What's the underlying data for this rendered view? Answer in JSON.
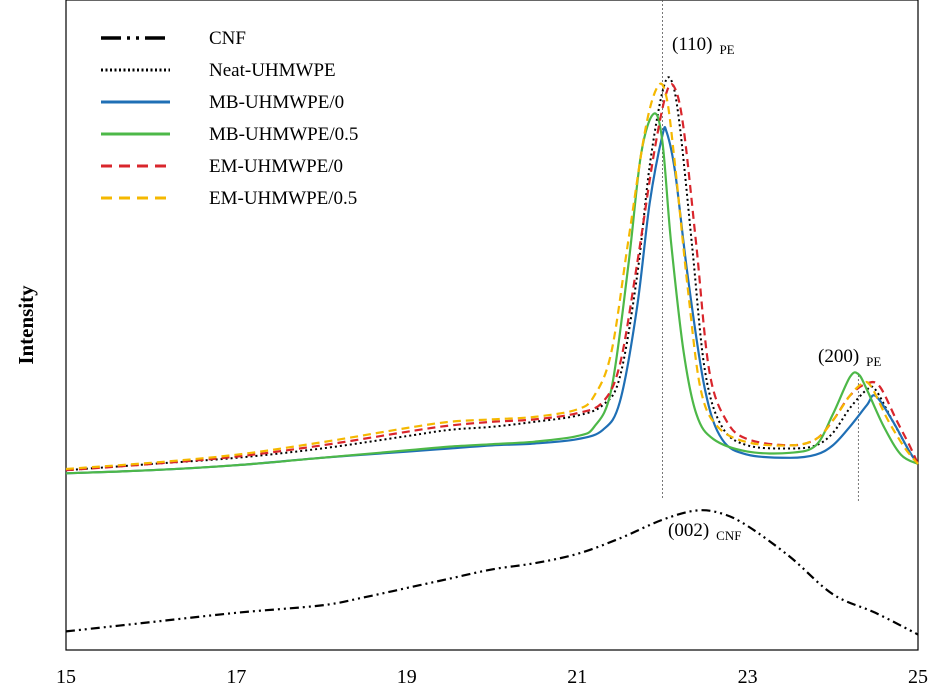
{
  "chart_data": {
    "type": "line",
    "title": "",
    "xlabel": "",
    "ylabel": "Intensity",
    "xlim": [
      15,
      25
    ],
    "ylim": [
      0,
      1
    ],
    "xticks": [
      15,
      17,
      19,
      21,
      23,
      25
    ],
    "grid": false,
    "legend_position": "top-left",
    "series": [
      {
        "name": "CNF",
        "color": "#000000",
        "dash": "dash-dot-dot",
        "x": [
          15,
          16,
          17,
          18,
          18.5,
          19,
          19.5,
          20,
          20.5,
          21,
          21.5,
          22,
          22.4,
          22.7,
          23,
          23.5,
          24,
          24.5,
          25
        ],
        "y": [
          0.03,
          0.045,
          0.06,
          0.072,
          0.085,
          0.1,
          0.115,
          0.13,
          0.14,
          0.155,
          0.18,
          0.21,
          0.225,
          0.22,
          0.2,
          0.15,
          0.09,
          0.06,
          0.025
        ]
      },
      {
        "name": "Neat-UHMWPE",
        "color": "#000000",
        "dash": "dotted",
        "x": [
          15,
          16,
          17,
          18,
          19,
          19.5,
          20,
          20.5,
          21,
          21.3,
          21.5,
          21.7,
          21.85,
          22,
          22.1,
          22.2,
          22.35,
          22.5,
          22.7,
          23,
          23.5,
          23.8,
          24,
          24.2,
          24.4,
          24.5,
          24.7,
          24.9,
          25
        ],
        "y": [
          0.29,
          0.3,
          0.31,
          0.325,
          0.345,
          0.355,
          0.36,
          0.368,
          0.378,
          0.395,
          0.44,
          0.6,
          0.78,
          0.9,
          0.92,
          0.85,
          0.65,
          0.45,
          0.36,
          0.33,
          0.325,
          0.33,
          0.35,
          0.39,
          0.42,
          0.42,
          0.37,
          0.32,
          0.3
        ]
      },
      {
        "name": "MB-UHMWPE/0",
        "color": "#1f6fb5",
        "dash": "solid",
        "x": [
          15,
          16,
          17,
          18,
          19,
          19.5,
          20,
          20.5,
          21,
          21.3,
          21.5,
          21.7,
          21.85,
          22,
          22.05,
          22.15,
          22.3,
          22.5,
          22.7,
          23,
          23.5,
          23.8,
          24,
          24.2,
          24.4,
          24.5,
          24.7,
          24.9,
          25
        ],
        "y": [
          0.285,
          0.29,
          0.298,
          0.31,
          0.32,
          0.325,
          0.33,
          0.333,
          0.34,
          0.355,
          0.4,
          0.55,
          0.72,
          0.83,
          0.835,
          0.77,
          0.6,
          0.42,
          0.34,
          0.315,
          0.31,
          0.315,
          0.33,
          0.36,
          0.395,
          0.41,
          0.37,
          0.32,
          0.3
        ]
      },
      {
        "name": "MB-UHMWPE/0.5",
        "color": "#4db848",
        "dash": "solid",
        "x": [
          15,
          16,
          17,
          18,
          19,
          19.5,
          20,
          20.5,
          21,
          21.2,
          21.4,
          21.6,
          21.75,
          21.9,
          22,
          22.1,
          22.25,
          22.4,
          22.6,
          23,
          23.5,
          23.8,
          24,
          24.2,
          24.3,
          24.4,
          24.6,
          24.8,
          25
        ],
        "y": [
          0.285,
          0.29,
          0.298,
          0.31,
          0.322,
          0.328,
          0.332,
          0.336,
          0.345,
          0.36,
          0.42,
          0.62,
          0.8,
          0.865,
          0.82,
          0.66,
          0.48,
          0.38,
          0.34,
          0.32,
          0.318,
          0.33,
          0.38,
          0.44,
          0.445,
          0.42,
          0.36,
          0.315,
          0.3
        ]
      },
      {
        "name": "EM-UHMWPE/0",
        "color": "#d9262c",
        "dash": "dashed",
        "x": [
          15,
          16,
          17,
          18,
          19,
          19.5,
          20,
          20.5,
          21,
          21.3,
          21.5,
          21.7,
          21.9,
          22.05,
          22.15,
          22.25,
          22.4,
          22.55,
          22.75,
          23,
          23.5,
          23.8,
          24,
          24.2,
          24.4,
          24.55,
          24.75,
          24.9,
          25
        ],
        "y": [
          0.29,
          0.3,
          0.312,
          0.33,
          0.352,
          0.362,
          0.368,
          0.372,
          0.382,
          0.4,
          0.46,
          0.62,
          0.8,
          0.9,
          0.905,
          0.84,
          0.65,
          0.45,
          0.37,
          0.34,
          0.33,
          0.34,
          0.37,
          0.41,
          0.43,
          0.425,
          0.37,
          0.33,
          0.3
        ]
      },
      {
        "name": "EM-UHMWPE/0.5",
        "color": "#f5b800",
        "dash": "dashed",
        "x": [
          15,
          16,
          17,
          18,
          19,
          19.5,
          20,
          20.5,
          21,
          21.2,
          21.4,
          21.6,
          21.8,
          21.95,
          22.05,
          22.15,
          22.3,
          22.45,
          22.65,
          23,
          23.5,
          23.8,
          24,
          24.2,
          24.35,
          24.45,
          24.65,
          24.85,
          25
        ],
        "y": [
          0.292,
          0.302,
          0.315,
          0.335,
          0.358,
          0.368,
          0.372,
          0.376,
          0.388,
          0.41,
          0.48,
          0.66,
          0.84,
          0.91,
          0.89,
          0.78,
          0.58,
          0.42,
          0.36,
          0.335,
          0.33,
          0.34,
          0.37,
          0.41,
          0.43,
          0.425,
          0.37,
          0.325,
          0.3
        ]
      }
    ],
    "annotations": [
      {
        "main": "(110)",
        "sub": "PE",
        "x": 22,
        "line": true
      },
      {
        "main": "(200)",
        "sub": "PE",
        "x": 24.3,
        "line": true
      },
      {
        "main": "(002)",
        "sub": "CNF",
        "x": 22.4,
        "line": false
      }
    ]
  }
}
